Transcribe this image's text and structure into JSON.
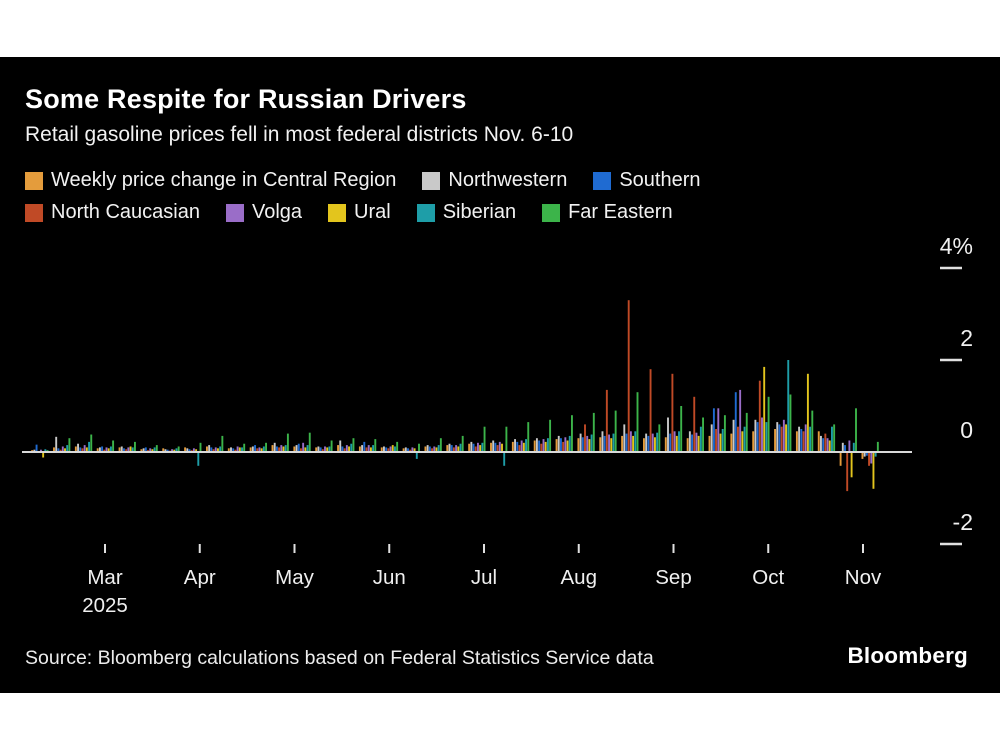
{
  "header": {
    "title": "Some Respite for Russian Drivers",
    "subtitle": "Retail gasoline prices fell in most federal districts Nov. 6-10"
  },
  "footer": {
    "source": "Source: Bloomberg calculations based on Federal Statistics Service data",
    "brand": "Bloomberg"
  },
  "colors": {
    "background": "#000000",
    "page_margin": "#ffffff",
    "axis_text": "#f0f0f0",
    "zero_line": "#d9d9d9",
    "tick": "#e0e0e0"
  },
  "chart_data": {
    "type": "bar",
    "title": "Some Respite for Russian Drivers",
    "subtitle": "Retail gasoline prices fell in most federal districts Nov. 6-10",
    "unit": "%",
    "grid": false,
    "legend_position": "top",
    "y_axis": {
      "ticks": [
        {
          "label": "4%",
          "value": 4
        },
        {
          "label": "2",
          "value": 2
        },
        {
          "label": "0",
          "value": 0
        },
        {
          "label": "-2",
          "value": -2
        }
      ],
      "range": [
        -2.6,
        4.3
      ]
    },
    "x_axis": {
      "month_labels": [
        "Mar",
        "Apr",
        "May",
        "Jun",
        "Jul",
        "Aug",
        "Sep",
        "Oct",
        "Nov"
      ],
      "year_label": "2025",
      "granularity": "weekly"
    },
    "series": [
      {
        "name": "Weekly price change in Central Region",
        "region": "Central",
        "color": "#E49C3C",
        "legend_row": 0
      },
      {
        "name": "Northwestern",
        "region": "Northwestern",
        "color": "#C9C9C9",
        "legend_row": 0
      },
      {
        "name": "Southern",
        "region": "Southern",
        "color": "#1F6BD2",
        "legend_row": 0
      },
      {
        "name": "North Caucasian",
        "region": "North Caucasian",
        "color": "#C04A26",
        "legend_row": 1
      },
      {
        "name": "Volga",
        "region": "Volga",
        "color": "#9A6DC8",
        "legend_row": 1
      },
      {
        "name": "Ural",
        "region": "Ural",
        "color": "#E3C51D",
        "legend_row": 1
      },
      {
        "name": "Siberian",
        "region": "Siberian",
        "color": "#1E9EA8",
        "legend_row": 1
      },
      {
        "name": "Far Eastern",
        "region": "Far Eastern",
        "color": "#3CB44A",
        "legend_row": 1
      }
    ],
    "week_value_order": [
      "Central",
      "Northwestern",
      "Southern",
      "North Caucasian",
      "Volga",
      "Ural",
      "Siberian",
      "Far Eastern"
    ],
    "weeks": [
      [
        0.04,
        0.05,
        0.16,
        0.02,
        0.05,
        -0.12,
        0.06,
        0.04
      ],
      [
        0.1,
        0.33,
        0.08,
        0.05,
        0.12,
        0.08,
        0.15,
        0.3
      ],
      [
        0.12,
        0.18,
        0.1,
        0.08,
        0.15,
        0.1,
        0.22,
        0.38
      ],
      [
        0.08,
        0.1,
        0.12,
        0.05,
        0.1,
        0.08,
        0.12,
        0.25
      ],
      [
        0.1,
        0.12,
        0.08,
        0.06,
        0.1,
        0.12,
        0.1,
        0.22
      ],
      [
        0.06,
        0.08,
        0.1,
        0.04,
        0.08,
        0.06,
        0.1,
        0.15
      ],
      [
        0.08,
        0.06,
        0.05,
        0.03,
        0.06,
        0.05,
        0.08,
        0.12
      ],
      [
        0.1,
        0.08,
        0.06,
        0.04,
        0.08,
        0.06,
        -0.3,
        0.2
      ],
      [
        0.12,
        0.15,
        0.1,
        0.06,
        0.1,
        0.08,
        0.12,
        0.35
      ],
      [
        0.08,
        0.1,
        0.08,
        0.05,
        0.12,
        0.1,
        0.1,
        0.18
      ],
      [
        0.1,
        0.12,
        0.15,
        0.08,
        0.1,
        0.08,
        0.12,
        0.2
      ],
      [
        0.15,
        0.2,
        0.12,
        0.1,
        0.15,
        0.12,
        0.15,
        0.4
      ],
      [
        0.12,
        0.15,
        0.18,
        0.08,
        0.2,
        0.1,
        0.15,
        0.42
      ],
      [
        0.1,
        0.12,
        0.1,
        0.06,
        0.12,
        0.1,
        0.12,
        0.25
      ],
      [
        0.15,
        0.25,
        0.12,
        0.08,
        0.15,
        0.12,
        0.18,
        0.3
      ],
      [
        0.12,
        0.15,
        0.22,
        0.1,
        0.15,
        0.1,
        0.15,
        0.28
      ],
      [
        0.1,
        0.12,
        0.1,
        0.08,
        0.12,
        0.15,
        0.12,
        0.22
      ],
      [
        0.08,
        0.1,
        0.08,
        0.05,
        0.1,
        0.08,
        -0.15,
        0.18
      ],
      [
        0.12,
        0.15,
        0.12,
        0.08,
        0.12,
        0.1,
        0.15,
        0.3
      ],
      [
        0.15,
        0.18,
        0.15,
        0.1,
        0.15,
        0.12,
        0.18,
        0.35
      ],
      [
        0.18,
        0.22,
        0.18,
        0.12,
        0.2,
        0.15,
        0.2,
        0.55
      ],
      [
        0.2,
        0.25,
        0.2,
        0.15,
        0.22,
        0.18,
        -0.3,
        0.55
      ],
      [
        0.22,
        0.28,
        0.22,
        0.15,
        0.25,
        0.2,
        0.28,
        0.65
      ],
      [
        0.25,
        0.3,
        0.25,
        0.18,
        0.28,
        0.22,
        0.3,
        0.7
      ],
      [
        0.28,
        0.35,
        0.3,
        0.22,
        0.32,
        0.25,
        0.35,
        0.8
      ],
      [
        0.3,
        0.4,
        0.32,
        0.6,
        0.35,
        0.28,
        0.38,
        0.85
      ],
      [
        0.32,
        0.45,
        0.35,
        1.35,
        0.38,
        0.3,
        0.4,
        0.9
      ],
      [
        0.35,
        0.6,
        0.4,
        3.3,
        0.45,
        0.35,
        0.45,
        1.3
      ],
      [
        0.3,
        0.4,
        0.35,
        1.8,
        0.4,
        0.32,
        0.42,
        0.6
      ],
      [
        0.32,
        0.75,
        0.4,
        1.7,
        0.45,
        0.35,
        0.45,
        1.0
      ],
      [
        0.3,
        0.45,
        0.38,
        1.2,
        0.42,
        0.35,
        0.55,
        0.75
      ],
      [
        0.35,
        0.6,
        0.95,
        0.5,
        0.95,
        0.4,
        0.5,
        0.8
      ],
      [
        0.4,
        0.7,
        1.3,
        0.55,
        1.35,
        0.45,
        0.55,
        0.85
      ],
      [
        0.45,
        0.7,
        0.65,
        1.55,
        0.75,
        1.85,
        0.65,
        1.2
      ],
      [
        0.5,
        0.65,
        0.6,
        0.55,
        0.7,
        0.6,
        2.0,
        1.25
      ],
      [
        0.45,
        0.55,
        0.5,
        0.45,
        0.6,
        1.7,
        0.55,
        0.9
      ],
      [
        0.45,
        0.35,
        0.3,
        0.4,
        0.3,
        0.25,
        0.55,
        0.6
      ],
      [
        -0.3,
        0.2,
        0.15,
        -0.85,
        0.25,
        -0.55,
        0.2,
        0.95
      ],
      [
        -0.15,
        -0.1,
        -0.08,
        -0.3,
        -0.25,
        -0.8,
        -0.1,
        0.22
      ]
    ]
  }
}
